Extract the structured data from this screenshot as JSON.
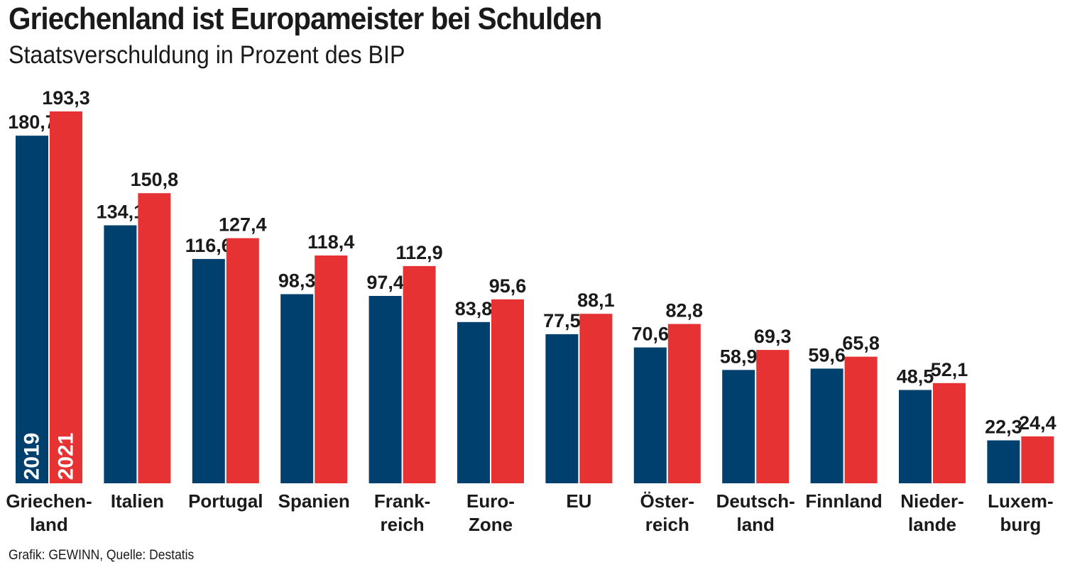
{
  "chart_data": {
    "type": "bar",
    "title": "Griechenland ist Europameister bei Schulden",
    "subtitle": "Staatsverschuldung in Prozent des BIP",
    "categories": [
      [
        "Griechen-",
        "land"
      ],
      [
        "Italien"
      ],
      [
        "Portugal"
      ],
      [
        "Spanien"
      ],
      [
        "Frank-",
        "reich"
      ],
      [
        "Euro-",
        "Zone"
      ],
      [
        "EU"
      ],
      [
        "Öster-",
        "reich"
      ],
      [
        "Deutsch-",
        "land"
      ],
      [
        "Finnland"
      ],
      [
        "Nieder-",
        "lande"
      ],
      [
        "Luxem-",
        "burg"
      ]
    ],
    "series": [
      {
        "name": "2019",
        "color": "#00406e",
        "values": [
          180.7,
          134.1,
          116.6,
          98.3,
          97.4,
          83.8,
          77.5,
          70.6,
          58.9,
          59.6,
          48.5,
          22.3
        ],
        "labels": [
          "180,7",
          "134,1",
          "116,6",
          "98,3",
          "97,4",
          "83,8",
          "77,5",
          "70,6",
          "58,9",
          "59,6",
          "48,5",
          "22,3"
        ]
      },
      {
        "name": "2021",
        "color": "#e63232",
        "values": [
          193.3,
          150.8,
          127.4,
          118.4,
          112.9,
          95.6,
          88.1,
          82.8,
          69.3,
          65.8,
          52.1,
          24.4
        ],
        "labels": [
          "193,3",
          "150,8",
          "127,4",
          "118,4",
          "112,9",
          "95,6",
          "88,1",
          "82,8",
          "69,3",
          "65,8",
          "52,1",
          "24,4"
        ]
      }
    ],
    "ylim": [
      0,
      193.3
    ],
    "grid": false,
    "legend": "inside first bar pair"
  },
  "footer": {
    "source": "Grafik: GEWINN, Quelle: Destatis"
  }
}
